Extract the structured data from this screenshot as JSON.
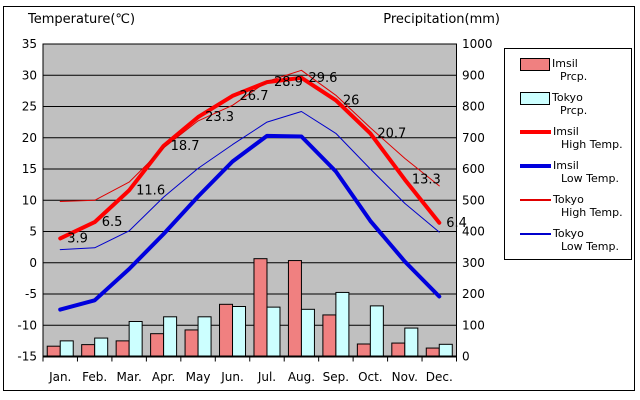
{
  "chart_data": {
    "type": "combo",
    "title_left": "Temperature(℃)",
    "title_right": "Precipitation(mm)",
    "categories": [
      "Jan.",
      "Feb.",
      "Mar.",
      "Apr.",
      "May",
      "Jun.",
      "Jul.",
      "Aug.",
      "Sep.",
      "Oct.",
      "Nov.",
      "Dec."
    ],
    "temp_axis": {
      "min": -15,
      "max": 35,
      "step": 5,
      "ticks": [
        35,
        30,
        25,
        20,
        15,
        10,
        5,
        0,
        -5,
        -10,
        -15
      ]
    },
    "precip_axis": {
      "min": 0,
      "max": 1000,
      "step": 100,
      "ticks": [
        1000,
        900,
        800,
        700,
        600,
        500,
        400,
        300,
        200,
        100,
        0
      ]
    },
    "plot_bg": "#c0c0c0",
    "grid": true,
    "legend_position": "right",
    "series": [
      {
        "name": "Imsil Prcp.",
        "type": "bar",
        "axis": "precip",
        "color": "#f08080",
        "values": [
          33,
          38,
          50,
          73,
          85,
          167,
          313,
          307,
          133,
          40,
          43,
          27
        ]
      },
      {
        "name": "Tokyo Prcp.",
        "type": "bar",
        "axis": "precip",
        "color": "#ccffff",
        "values": [
          50,
          59,
          112,
          127,
          127,
          160,
          158,
          151,
          205,
          162,
          91,
          39
        ]
      },
      {
        "name": "Imsil High Temp.",
        "type": "line",
        "axis": "temp",
        "color": "#ff0000",
        "width": 4,
        "values": [
          3.9,
          6.5,
          11.6,
          18.7,
          23.3,
          26.7,
          28.9,
          29.6,
          26.0,
          20.7,
          13.3,
          6.4
        ],
        "point_labels": [
          "3.9",
          "6.5",
          "11.6",
          "18.7",
          "23.3",
          "26.7",
          "28.9",
          "29.6",
          "26",
          "20.7",
          "13.3",
          "6.4"
        ]
      },
      {
        "name": "Imsil Low Temp.",
        "type": "line",
        "axis": "temp",
        "color": "#0000dd",
        "width": 4,
        "values": [
          -7.5,
          -6.0,
          -1.0,
          4.6,
          10.6,
          16.2,
          20.3,
          20.2,
          14.6,
          6.7,
          0.2,
          -5.4
        ]
      },
      {
        "name": "Tokyo High Temp.",
        "type": "line",
        "axis": "temp",
        "color": "#e00000",
        "width": 1,
        "values": [
          9.8,
          10.0,
          12.9,
          18.4,
          22.7,
          25.2,
          29.0,
          30.8,
          26.8,
          21.6,
          16.7,
          12.3
        ]
      },
      {
        "name": "Tokyo Low Temp.",
        "type": "line",
        "axis": "temp",
        "color": "#0000cc",
        "width": 1,
        "values": [
          2.1,
          2.4,
          5.1,
          10.5,
          15.1,
          18.9,
          22.5,
          24.2,
          20.7,
          15.0,
          9.5,
          4.9
        ]
      }
    ],
    "legend": [
      {
        "swatch": "bar",
        "color": "#f08080",
        "line1": "Imsil",
        "line2": "Prcp."
      },
      {
        "swatch": "bar",
        "color": "#ccffff",
        "line1": "Tokyo",
        "line2": "Prcp."
      },
      {
        "swatch": "thick",
        "color": "#ff0000",
        "line1": "Imsil",
        "line2": "High Temp."
      },
      {
        "swatch": "thick",
        "color": "#0000dd",
        "line1": "Imsil",
        "line2": "Low Temp."
      },
      {
        "swatch": "thin",
        "color": "#e00000",
        "line1": "Tokyo",
        "line2": "High Temp."
      },
      {
        "swatch": "thin",
        "color": "#0000cc",
        "line1": "Tokyo",
        "line2": "Low Temp."
      }
    ]
  }
}
